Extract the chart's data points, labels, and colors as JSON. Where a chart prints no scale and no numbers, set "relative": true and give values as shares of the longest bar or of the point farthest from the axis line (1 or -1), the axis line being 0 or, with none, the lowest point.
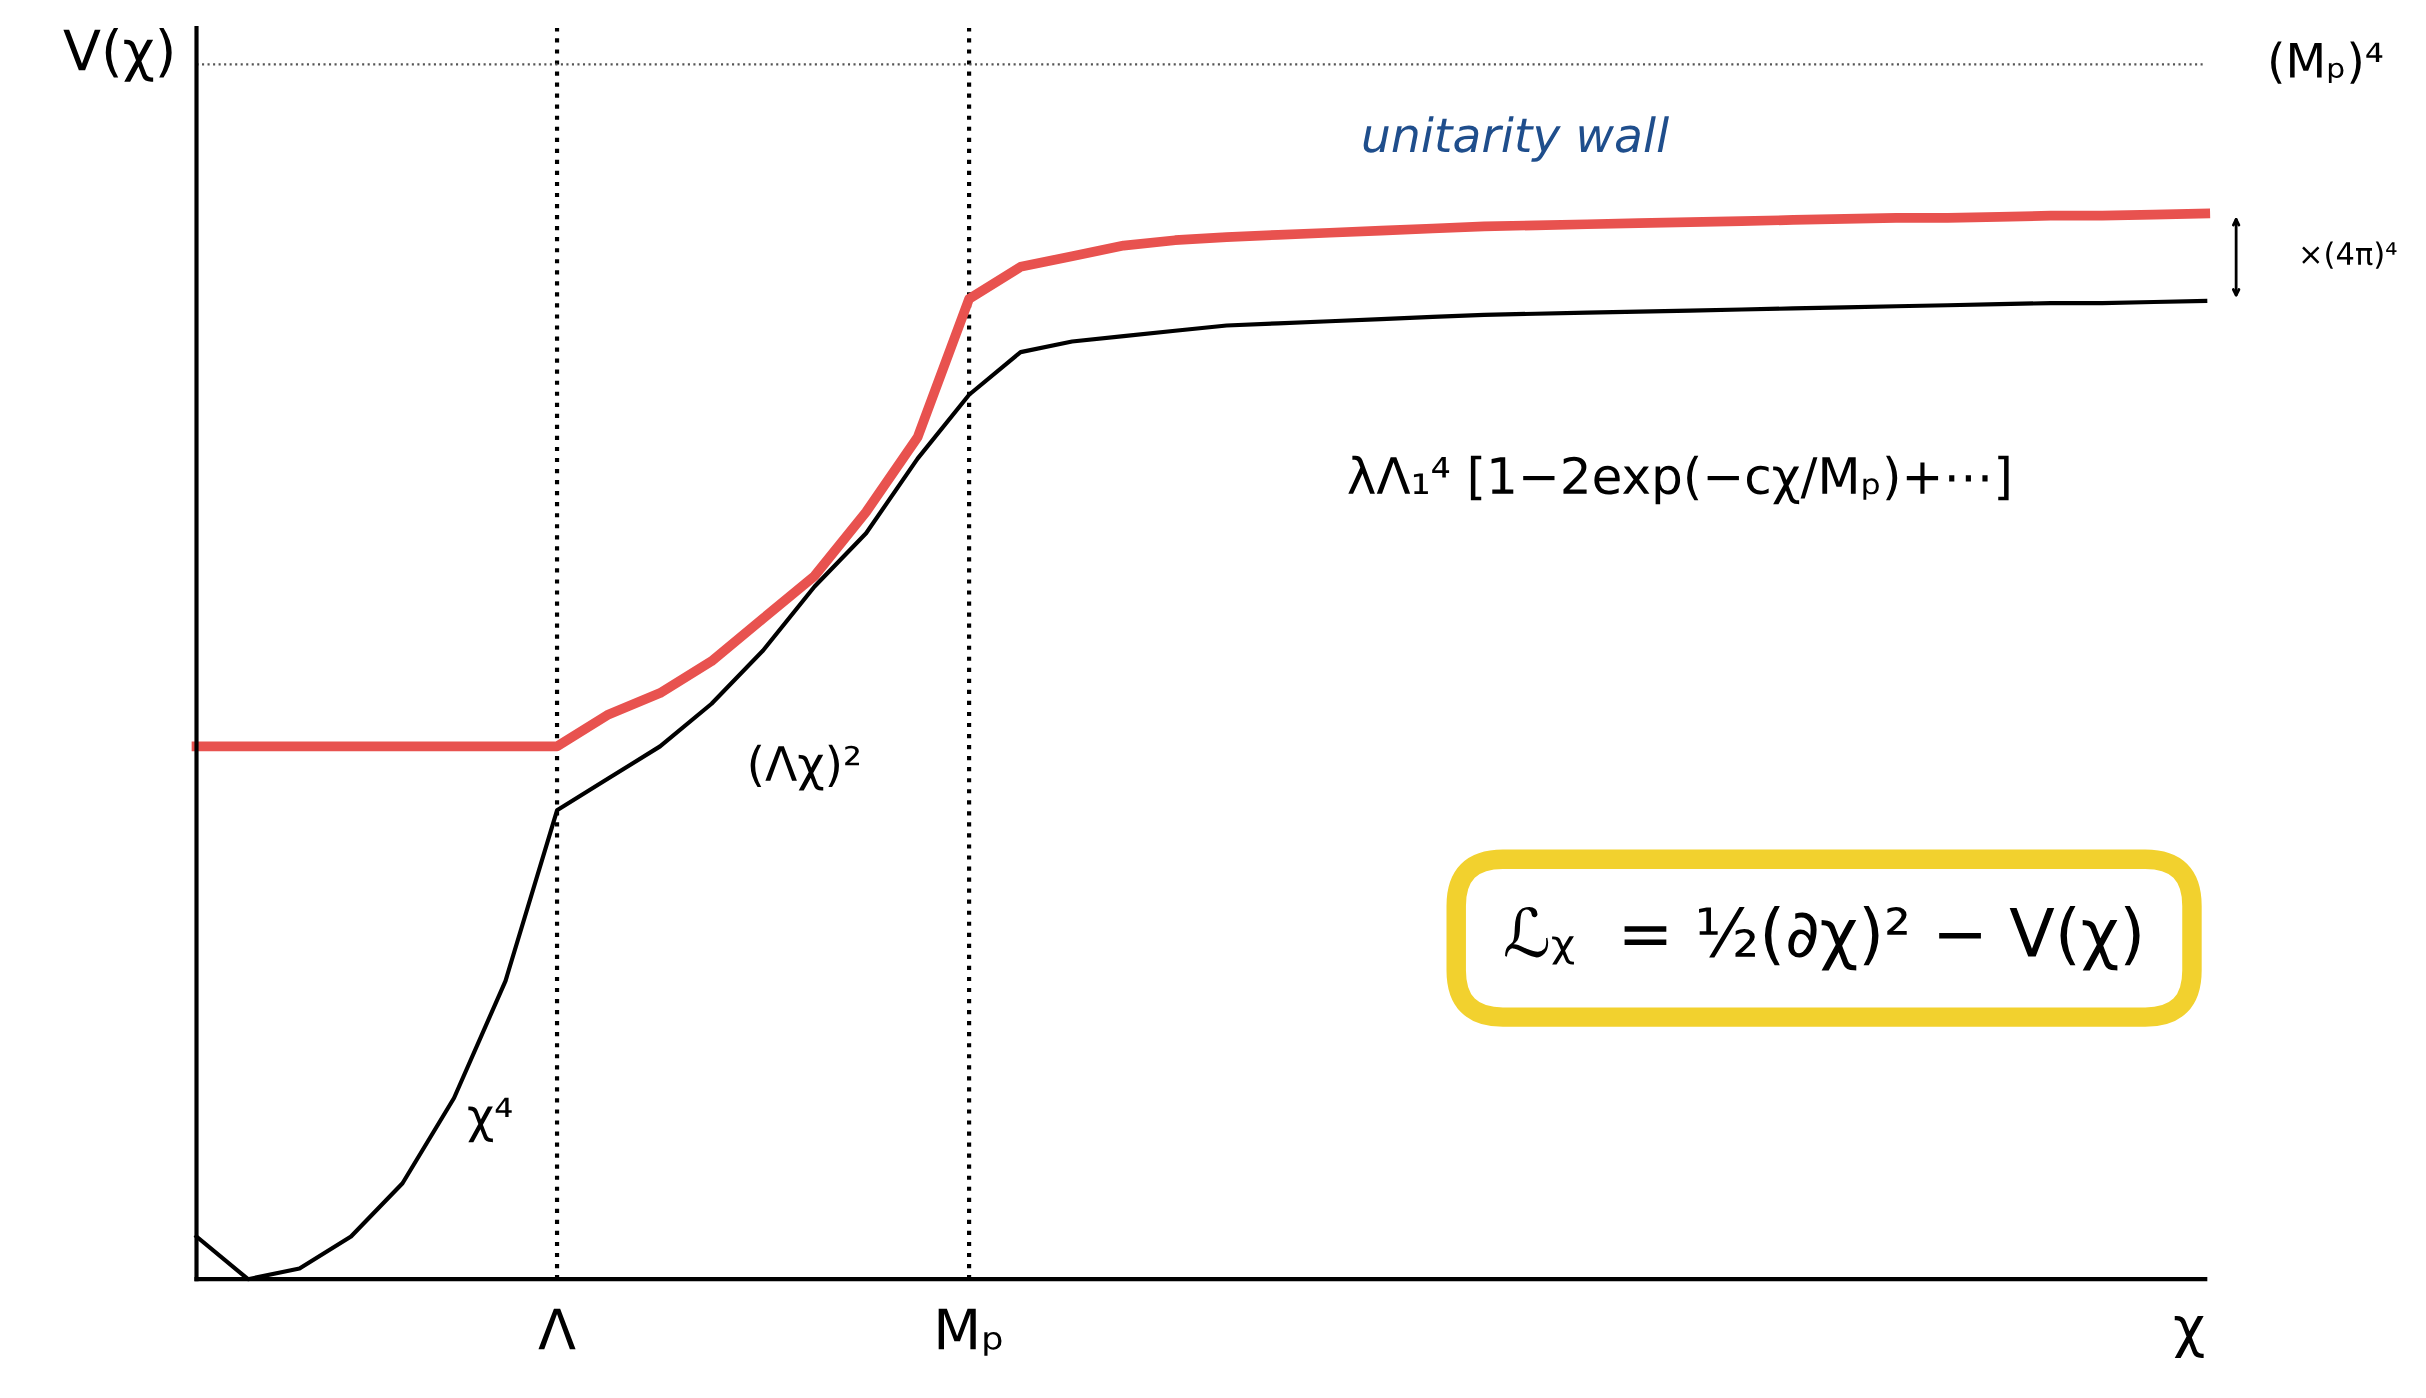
{
  "chart_data": {
    "type": "line",
    "relative": true,
    "xlabel": "χ",
    "ylabel": "V(χ)",
    "categories": [
      null,
      null,
      null,
      null,
      null,
      null,
      null,
      "Λ",
      null,
      null,
      null,
      null,
      null,
      null,
      null,
      "Mₚ",
      null,
      null,
      null,
      null,
      null,
      null,
      null,
      null,
      null,
      null,
      null,
      null,
      null,
      null,
      null,
      null,
      null,
      null,
      null,
      null,
      null,
      null,
      null,
      null
    ],
    "series": [
      {
        "color": "#e8524f",
        "values": [
          0.5,
          0.5,
          0.5,
          0.5,
          0.5,
          0.5,
          0.5,
          0.5,
          0.53,
          0.55,
          0.58,
          0.62,
          0.66,
          0.72,
          0.79,
          0.92,
          0.95,
          0.96,
          0.97,
          0.975,
          0.978,
          0.98,
          0.982,
          0.984,
          0.986,
          0.988,
          0.989,
          0.99,
          0.991,
          0.992,
          0.993,
          0.994,
          0.995,
          0.996,
          0.996,
          0.997,
          0.998,
          0.998,
          0.999,
          1.0
        ]
      },
      {
        "color": "#000000",
        "values": [
          0.04,
          0.0,
          0.01,
          0.04,
          0.09,
          0.17,
          0.28,
          0.44,
          0.47,
          0.5,
          0.54,
          0.59,
          0.65,
          0.7,
          0.77,
          0.83,
          0.87,
          0.88,
          0.885,
          0.89,
          0.895,
          0.897,
          0.899,
          0.901,
          0.903,
          0.905,
          0.906,
          0.907,
          0.908,
          0.909,
          0.91,
          0.911,
          0.912,
          0.913,
          0.914,
          0.915,
          0.916,
          0.916,
          0.917,
          0.918
        ]
      }
    ],
    "ref_lines": [
      {
        "axis": "y",
        "value": 1.14,
        "label": "(Mₚ)⁴",
        "line_style": "dotted",
        "color": "#555555"
      }
    ],
    "annotations": [
      "unitarity wall",
      "×(4π)⁴",
      "λΛ₁⁴ [1−2exp(−cχ/Mₚ)+⋯]",
      "(Λχ)²",
      "χ⁴",
      "ℒᵪ  = ½(∂χ)² − V(χ)"
    ],
    "grid": "x",
    "marker": "none",
    "line_style": "solid"
  }
}
